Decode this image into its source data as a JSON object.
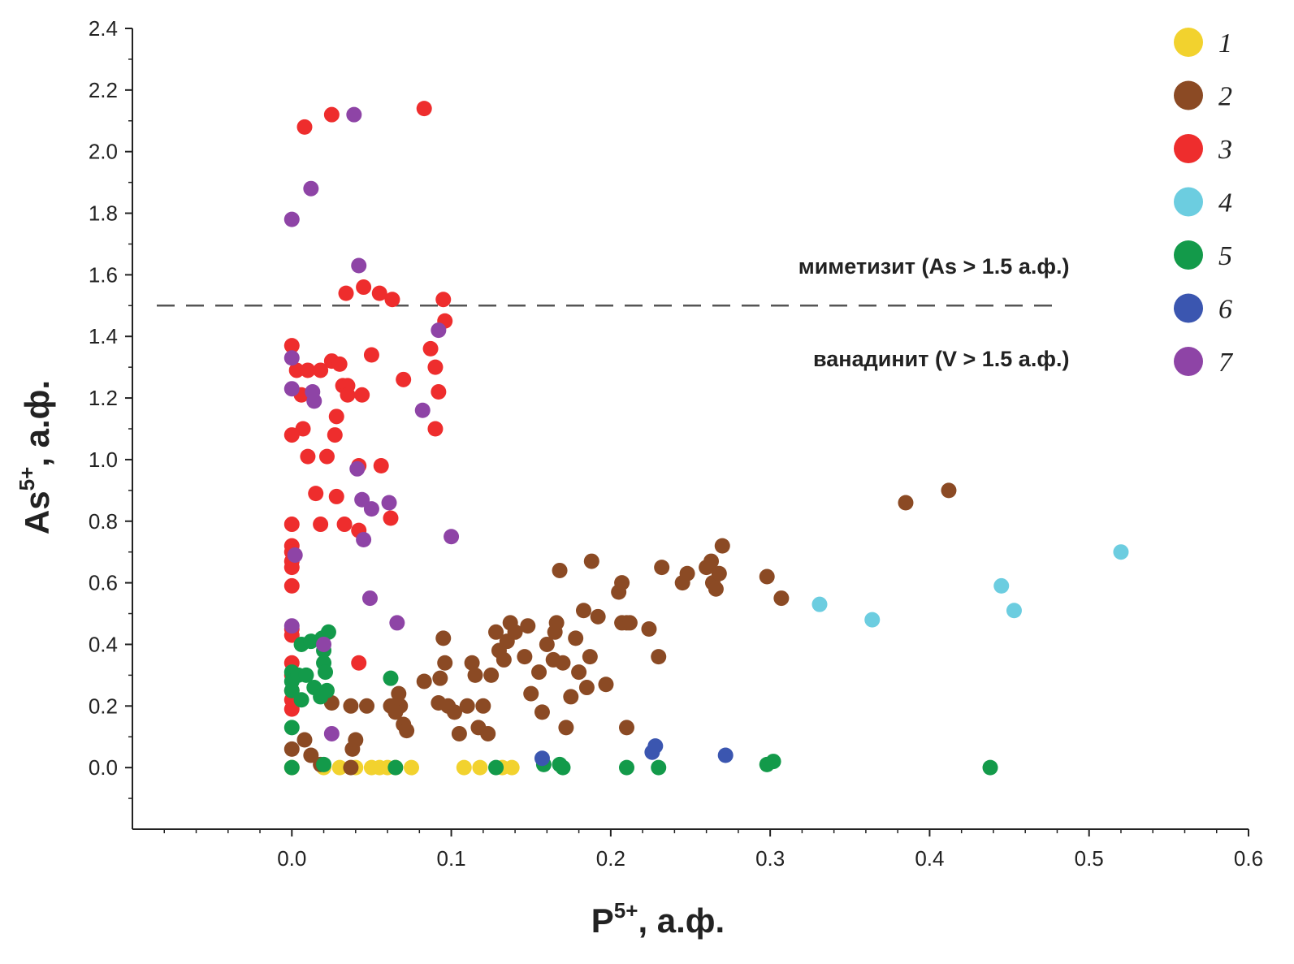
{
  "chart_data": {
    "type": "scatter",
    "xlabel": {
      "base": "P",
      "sup": "5+",
      "rest": ", а.ф."
    },
    "ylabel": {
      "base": "As",
      "sup": "5+",
      "rest": ", а.ф."
    },
    "xlim": [
      -0.1,
      0.6
    ],
    "ylim": [
      -0.2,
      2.4
    ],
    "xticks": [
      {
        "v": 0.0,
        "label": "0.0"
      },
      {
        "v": 0.1,
        "label": "0.1"
      },
      {
        "v": 0.2,
        "label": "0.2"
      },
      {
        "v": 0.3,
        "label": "0.3"
      },
      {
        "v": 0.4,
        "label": "0.4"
      },
      {
        "v": 0.5,
        "label": "0.5"
      },
      {
        "v": 0.6,
        "label": "0.6"
      }
    ],
    "yticks": [
      {
        "v": 0.0,
        "label": "0.0"
      },
      {
        "v": 0.2,
        "label": "0.2"
      },
      {
        "v": 0.4,
        "label": "0.4"
      },
      {
        "v": 0.6,
        "label": "0.6"
      },
      {
        "v": 0.8,
        "label": "0.8"
      },
      {
        "v": 1.0,
        "label": "1.0"
      },
      {
        "v": 1.2,
        "label": "1.2"
      },
      {
        "v": 1.4,
        "label": "1.4"
      },
      {
        "v": 1.6,
        "label": "1.6"
      },
      {
        "v": 1.8,
        "label": "1.8"
      },
      {
        "v": 2.0,
        "label": "2.0"
      },
      {
        "v": 2.2,
        "label": "2.2"
      },
      {
        "v": 2.4,
        "label": "2.4"
      }
    ],
    "reference_line": {
      "y": 1.5,
      "x_range": [
        -0.1,
        0.48
      ],
      "style": "dashed",
      "color": "#555555"
    },
    "annotations": [
      {
        "text": "миметизит (As > 1.5 а.ф.)",
        "x": 0.48,
        "y": 1.63,
        "anchor": "end"
      },
      {
        "text": "ванадинит (V > 1.5 а.ф.)",
        "x": 0.48,
        "y": 1.33,
        "anchor": "end"
      }
    ],
    "legend_position": "top-right",
    "series": [
      {
        "name": "1",
        "color": "#f2d22e",
        "points": [
          [
            0.0,
            0.0
          ],
          [
            0.02,
            0.0
          ],
          [
            0.03,
            0.0
          ],
          [
            0.04,
            0.0
          ],
          [
            0.05,
            0.0
          ],
          [
            0.055,
            0.0
          ],
          [
            0.06,
            0.0
          ],
          [
            0.065,
            0.0
          ],
          [
            0.075,
            0.0
          ],
          [
            0.108,
            0.0
          ],
          [
            0.118,
            0.0
          ],
          [
            0.132,
            0.0
          ],
          [
            0.138,
            0.0
          ]
        ]
      },
      {
        "name": "2",
        "color": "#8b4a24",
        "points": [
          [
            0.0,
            0.06
          ],
          [
            0.008,
            0.09
          ],
          [
            0.012,
            0.04
          ],
          [
            0.018,
            0.01
          ],
          [
            0.037,
            0.0
          ],
          [
            0.038,
            0.06
          ],
          [
            0.04,
            0.09
          ],
          [
            0.025,
            0.21
          ],
          [
            0.037,
            0.2
          ],
          [
            0.047,
            0.2
          ],
          [
            0.062,
            0.2
          ],
          [
            0.067,
            0.24
          ],
          [
            0.068,
            0.2
          ],
          [
            0.07,
            0.14
          ],
          [
            0.072,
            0.12
          ],
          [
            0.065,
            0.18
          ],
          [
            0.083,
            0.28
          ],
          [
            0.093,
            0.29
          ],
          [
            0.095,
            0.42
          ],
          [
            0.096,
            0.34
          ],
          [
            0.092,
            0.21
          ],
          [
            0.098,
            0.2
          ],
          [
            0.102,
            0.18
          ],
          [
            0.105,
            0.11
          ],
          [
            0.11,
            0.2
          ],
          [
            0.113,
            0.34
          ],
          [
            0.115,
            0.3
          ],
          [
            0.117,
            0.13
          ],
          [
            0.12,
            0.2
          ],
          [
            0.123,
            0.11
          ],
          [
            0.125,
            0.3
          ],
          [
            0.128,
            0.44
          ],
          [
            0.13,
            0.38
          ],
          [
            0.133,
            0.35
          ],
          [
            0.135,
            0.41
          ],
          [
            0.137,
            0.47
          ],
          [
            0.14,
            0.44
          ],
          [
            0.148,
            0.46
          ],
          [
            0.146,
            0.36
          ],
          [
            0.15,
            0.24
          ],
          [
            0.155,
            0.31
          ],
          [
            0.157,
            0.18
          ],
          [
            0.16,
            0.4
          ],
          [
            0.164,
            0.35
          ],
          [
            0.165,
            0.44
          ],
          [
            0.166,
            0.47
          ],
          [
            0.168,
            0.64
          ],
          [
            0.17,
            0.34
          ],
          [
            0.172,
            0.13
          ],
          [
            0.175,
            0.23
          ],
          [
            0.178,
            0.42
          ],
          [
            0.18,
            0.31
          ],
          [
            0.183,
            0.51
          ],
          [
            0.185,
            0.26
          ],
          [
            0.187,
            0.36
          ],
          [
            0.188,
            0.67
          ],
          [
            0.192,
            0.49
          ],
          [
            0.197,
            0.27
          ],
          [
            0.205,
            0.57
          ],
          [
            0.207,
            0.6
          ],
          [
            0.207,
            0.47
          ],
          [
            0.21,
            0.47
          ],
          [
            0.212,
            0.47
          ],
          [
            0.21,
            0.13
          ],
          [
            0.224,
            0.45
          ],
          [
            0.23,
            0.36
          ],
          [
            0.232,
            0.65
          ],
          [
            0.245,
            0.6
          ],
          [
            0.248,
            0.63
          ],
          [
            0.26,
            0.65
          ],
          [
            0.263,
            0.67
          ],
          [
            0.264,
            0.6
          ],
          [
            0.266,
            0.58
          ],
          [
            0.268,
            0.63
          ],
          [
            0.27,
            0.72
          ],
          [
            0.298,
            0.62
          ],
          [
            0.307,
            0.55
          ],
          [
            0.385,
            0.86
          ],
          [
            0.412,
            0.9
          ]
        ]
      },
      {
        "name": "3",
        "color": "#ee2d2d",
        "points": [
          [
            0.008,
            2.08
          ],
          [
            0.025,
            2.12
          ],
          [
            0.083,
            2.14
          ],
          [
            0.034,
            1.54
          ],
          [
            0.045,
            1.56
          ],
          [
            0.055,
            1.54
          ],
          [
            0.063,
            1.52
          ],
          [
            0.095,
            1.52
          ],
          [
            0.096,
            1.45
          ],
          [
            0.0,
            1.37
          ],
          [
            0.025,
            1.32
          ],
          [
            0.03,
            1.31
          ],
          [
            0.05,
            1.34
          ],
          [
            0.087,
            1.36
          ],
          [
            0.09,
            1.3
          ],
          [
            0.003,
            1.29
          ],
          [
            0.01,
            1.29
          ],
          [
            0.018,
            1.29
          ],
          [
            0.032,
            1.24
          ],
          [
            0.035,
            1.24
          ],
          [
            0.07,
            1.26
          ],
          [
            0.006,
            1.21
          ],
          [
            0.035,
            1.21
          ],
          [
            0.044,
            1.21
          ],
          [
            0.092,
            1.22
          ],
          [
            0.028,
            1.14
          ],
          [
            0.007,
            1.1
          ],
          [
            0.0,
            1.08
          ],
          [
            0.027,
            1.08
          ],
          [
            0.09,
            1.1
          ],
          [
            0.01,
            1.01
          ],
          [
            0.022,
            1.01
          ],
          [
            0.042,
            0.98
          ],
          [
            0.056,
            0.98
          ],
          [
            0.015,
            0.89
          ],
          [
            0.028,
            0.88
          ],
          [
            0.0,
            0.79
          ],
          [
            0.018,
            0.79
          ],
          [
            0.033,
            0.79
          ],
          [
            0.042,
            0.77
          ],
          [
            0.062,
            0.81
          ],
          [
            0.0,
            0.72
          ],
          [
            0.0,
            0.7
          ],
          [
            0.0,
            0.67
          ],
          [
            0.0,
            0.65
          ],
          [
            0.0,
            0.59
          ],
          [
            0.0,
            0.45
          ],
          [
            0.0,
            0.43
          ],
          [
            0.0,
            0.34
          ],
          [
            0.0,
            0.3
          ],
          [
            0.0,
            0.25
          ],
          [
            0.0,
            0.22
          ],
          [
            0.0,
            0.19
          ],
          [
            0.042,
            0.34
          ]
        ]
      },
      {
        "name": "4",
        "color": "#6ccde0",
        "points": [
          [
            0.331,
            0.53
          ],
          [
            0.364,
            0.48
          ],
          [
            0.445,
            0.59
          ],
          [
            0.453,
            0.51
          ],
          [
            0.52,
            0.7
          ]
        ]
      },
      {
        "name": "5",
        "color": "#139a4a",
        "points": [
          [
            0.0,
            0.31
          ],
          [
            0.0,
            0.28
          ],
          [
            0.0,
            0.25
          ],
          [
            0.0,
            0.13
          ],
          [
            0.004,
            0.3
          ],
          [
            0.006,
            0.22
          ],
          [
            0.006,
            0.4
          ],
          [
            0.009,
            0.3
          ],
          [
            0.012,
            0.41
          ],
          [
            0.014,
            0.26
          ],
          [
            0.018,
            0.23
          ],
          [
            0.019,
            0.42
          ],
          [
            0.02,
            0.34
          ],
          [
            0.02,
            0.38
          ],
          [
            0.021,
            0.31
          ],
          [
            0.022,
            0.25
          ],
          [
            0.023,
            0.44
          ],
          [
            0.062,
            0.29
          ],
          [
            0.0,
            0.0
          ],
          [
            0.02,
            0.01
          ],
          [
            0.065,
            0.0
          ],
          [
            0.128,
            0.0
          ],
          [
            0.158,
            0.01
          ],
          [
            0.168,
            0.01
          ],
          [
            0.17,
            0.0
          ],
          [
            0.21,
            0.0
          ],
          [
            0.23,
            0.0
          ],
          [
            0.298,
            0.01
          ],
          [
            0.302,
            0.02
          ],
          [
            0.438,
            0.0
          ]
        ]
      },
      {
        "name": "6",
        "color": "#3b56b0",
        "points": [
          [
            0.157,
            0.03
          ],
          [
            0.226,
            0.05
          ],
          [
            0.228,
            0.07
          ],
          [
            0.272,
            0.04
          ]
        ]
      },
      {
        "name": "7",
        "color": "#8e44a6",
        "points": [
          [
            0.039,
            2.12
          ],
          [
            0.012,
            1.88
          ],
          [
            0.0,
            1.78
          ],
          [
            0.042,
            1.63
          ],
          [
            0.092,
            1.42
          ],
          [
            0.0,
            1.33
          ],
          [
            0.0,
            1.23
          ],
          [
            0.013,
            1.22
          ],
          [
            0.014,
            1.19
          ],
          [
            0.082,
            1.16
          ],
          [
            0.041,
            0.97
          ],
          [
            0.044,
            0.87
          ],
          [
            0.05,
            0.84
          ],
          [
            0.061,
            0.86
          ],
          [
            0.045,
            0.74
          ],
          [
            0.1,
            0.75
          ],
          [
            0.002,
            0.69
          ],
          [
            0.049,
            0.55
          ],
          [
            0.066,
            0.47
          ],
          [
            0.0,
            0.46
          ],
          [
            0.02,
            0.4
          ],
          [
            0.025,
            0.11
          ]
        ]
      }
    ]
  }
}
